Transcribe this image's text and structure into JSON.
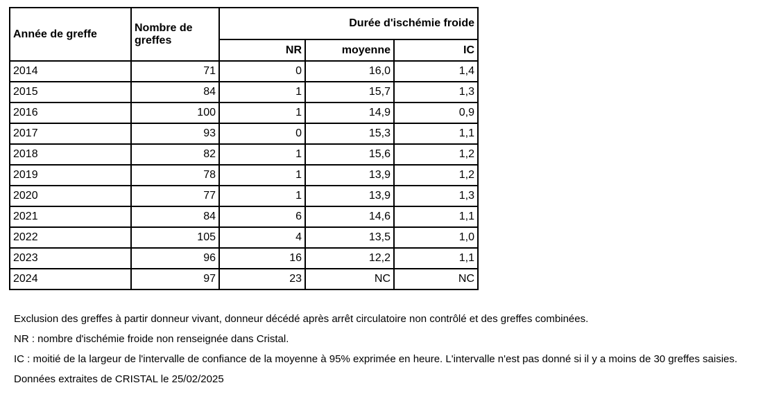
{
  "table": {
    "headers": {
      "annee": "Année de greffe",
      "nombre": "Nombre de greffes",
      "duree_group": "Durée d'ischémie froide",
      "nr": "NR",
      "moyenne": "moyenne",
      "ic": "IC"
    },
    "rows": [
      {
        "annee": "2014",
        "nombre": "71",
        "nr": "0",
        "moyenne": "16,0",
        "ic": "1,4"
      },
      {
        "annee": "2015",
        "nombre": "84",
        "nr": "1",
        "moyenne": "15,7",
        "ic": "1,3"
      },
      {
        "annee": "2016",
        "nombre": "100",
        "nr": "1",
        "moyenne": "14,9",
        "ic": "0,9"
      },
      {
        "annee": "2017",
        "nombre": "93",
        "nr": "0",
        "moyenne": "15,3",
        "ic": "1,1"
      },
      {
        "annee": "2018",
        "nombre": "82",
        "nr": "1",
        "moyenne": "15,6",
        "ic": "1,2"
      },
      {
        "annee": "2019",
        "nombre": "78",
        "nr": "1",
        "moyenne": "13,9",
        "ic": "1,2"
      },
      {
        "annee": "2020",
        "nombre": "77",
        "nr": "1",
        "moyenne": "13,9",
        "ic": "1,3"
      },
      {
        "annee": "2021",
        "nombre": "84",
        "nr": "6",
        "moyenne": "14,6",
        "ic": "1,1"
      },
      {
        "annee": "2022",
        "nombre": "105",
        "nr": "4",
        "moyenne": "13,5",
        "ic": "1,0"
      },
      {
        "annee": "2023",
        "nombre": "96",
        "nr": "16",
        "moyenne": "12,2",
        "ic": "1,1"
      },
      {
        "annee": "2024",
        "nombre": "97",
        "nr": "23",
        "moyenne": "NC",
        "ic": "NC"
      }
    ]
  },
  "footnotes": [
    "Exclusion des greffes à partir donneur vivant, donneur décédé après arrêt circulatoire non contrôlé et des greffes combinées.",
    "NR : nombre d'ischémie froide non renseignée dans Cristal.",
    "IC : moitié de la largeur de l'intervalle de confiance de la moyenne à 95% exprimée en heure. L'intervalle n'est pas donné si il y a moins de 30 greffes saisies.",
    "Données extraites de CRISTAL le 25/02/2025"
  ],
  "colors": {
    "border": "#000000",
    "text": "#000000",
    "background": "#ffffff"
  }
}
